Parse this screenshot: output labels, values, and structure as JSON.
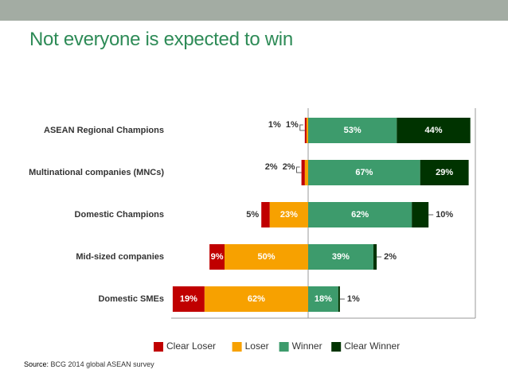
{
  "title": "Not everyone is expected to win",
  "source": {
    "label": "Source:",
    "text": "BCG 2014 global ASEAN survey"
  },
  "colors": {
    "clear_loser": "#c00000",
    "loser": "#f7a100",
    "winner": "#3d9b6c",
    "clear_winner": "#003300",
    "title": "#2e8b57",
    "topbar": "#a3aca3"
  },
  "chart_data": {
    "type": "bar",
    "orientation": "horizontal-diverging",
    "categories": [
      "ASEAN Regional Champions",
      "Multinational companies (MNCs)",
      "Domestic Champions",
      "Mid-sized companies",
      "Domestic SMEs"
    ],
    "series": [
      {
        "name": "Clear Loser",
        "values": [
          1,
          2,
          5,
          9,
          19
        ],
        "labels": [
          "1%",
          "2%",
          "5%",
          "9%",
          "19%"
        ]
      },
      {
        "name": "Loser",
        "values": [
          1,
          2,
          23,
          50,
          62
        ],
        "labels": [
          "1%",
          "2%",
          "23%",
          "50%",
          "62%"
        ]
      },
      {
        "name": "Winner",
        "values": [
          53,
          67,
          62,
          39,
          18
        ],
        "labels": [
          "53%",
          "67%",
          "62%",
          "39%",
          "18%"
        ]
      },
      {
        "name": "Clear Winner",
        "values": [
          44,
          29,
          10,
          2,
          1
        ],
        "labels": [
          "44%",
          "29%",
          "10%",
          "2%",
          "1%"
        ]
      }
    ],
    "legend_position": "bottom"
  }
}
